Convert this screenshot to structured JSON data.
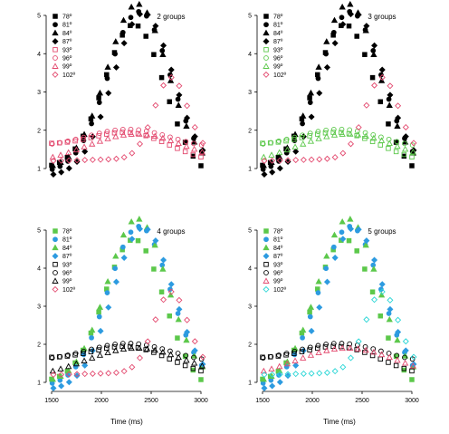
{
  "figure": {
    "xlabel": "Time (ms)"
  },
  "colors": {
    "black": "#000000",
    "red": "#e34a6f",
    "green": "#5cc84b",
    "blue": "#2d9be0",
    "cyan": "#29d6d6"
  },
  "chart_data": [
    {
      "type": "scatter",
      "title": "2 groups",
      "xlim": [
        1500,
        3000
      ],
      "ylim": [
        1,
        5
      ],
      "xticks": [
        1500,
        2000,
        2500,
        3000
      ],
      "yticks": [
        1,
        2,
        3,
        4,
        5
      ],
      "legend_position": "top-left",
      "series": [
        {
          "name": "78º",
          "shape": "square-filled",
          "color": "#000000"
        },
        {
          "name": "81º",
          "shape": "circle-filled",
          "color": "#000000"
        },
        {
          "name": "84º",
          "shape": "triangle-filled",
          "color": "#000000"
        },
        {
          "name": "87º",
          "shape": "diamond-filled",
          "color": "#000000"
        },
        {
          "name": "93º",
          "shape": "square-open",
          "color": "#e34a6f"
        },
        {
          "name": "96º",
          "shape": "circle-open",
          "color": "#e34a6f"
        },
        {
          "name": "99º",
          "shape": "triangle-open",
          "color": "#e34a6f"
        },
        {
          "name": "102º",
          "shape": "diamond-open",
          "color": "#e34a6f"
        }
      ]
    },
    {
      "type": "scatter",
      "title": "3 groups",
      "xlim": [
        1500,
        3000
      ],
      "ylim": [
        1,
        5
      ],
      "xticks": [
        1500,
        2000,
        2500,
        3000
      ],
      "yticks": [
        1,
        2,
        3,
        4,
        5
      ],
      "legend_position": "top-left",
      "series": [
        {
          "name": "78º",
          "shape": "square-filled",
          "color": "#000000"
        },
        {
          "name": "81º",
          "shape": "circle-filled",
          "color": "#000000"
        },
        {
          "name": "84º",
          "shape": "triangle-filled",
          "color": "#000000"
        },
        {
          "name": "87º",
          "shape": "diamond-filled",
          "color": "#000000"
        },
        {
          "name": "93º",
          "shape": "square-open",
          "color": "#5cc84b"
        },
        {
          "name": "96º",
          "shape": "circle-open",
          "color": "#5cc84b"
        },
        {
          "name": "99º",
          "shape": "triangle-open",
          "color": "#5cc84b"
        },
        {
          "name": "102º",
          "shape": "diamond-open",
          "color": "#e34a6f"
        }
      ]
    },
    {
      "type": "scatter",
      "title": "4 groups",
      "xlim": [
        1500,
        3000
      ],
      "ylim": [
        1,
        5
      ],
      "xticks": [
        1500,
        2000,
        2500,
        3000
      ],
      "yticks": [
        1,
        2,
        3,
        4,
        5
      ],
      "legend_position": "top-left",
      "series": [
        {
          "name": "78º",
          "shape": "square-filled",
          "color": "#5cc84b"
        },
        {
          "name": "81º",
          "shape": "circle-filled",
          "color": "#2d9be0"
        },
        {
          "name": "84º",
          "shape": "triangle-filled",
          "color": "#5cc84b"
        },
        {
          "name": "87º",
          "shape": "diamond-filled",
          "color": "#2d9be0"
        },
        {
          "name": "93º",
          "shape": "square-open",
          "color": "#000000"
        },
        {
          "name": "96º",
          "shape": "circle-open",
          "color": "#000000"
        },
        {
          "name": "99º",
          "shape": "triangle-open",
          "color": "#000000"
        },
        {
          "name": "102º",
          "shape": "diamond-open",
          "color": "#e34a6f"
        }
      ]
    },
    {
      "type": "scatter",
      "title": "5 groups",
      "xlim": [
        1500,
        3000
      ],
      "ylim": [
        1,
        5
      ],
      "xticks": [
        1500,
        2000,
        2500,
        3000
      ],
      "yticks": [
        1,
        2,
        3,
        4,
        5
      ],
      "legend_position": "top-left",
      "series": [
        {
          "name": "78º",
          "shape": "square-filled",
          "color": "#5cc84b"
        },
        {
          "name": "81º",
          "shape": "circle-filled",
          "color": "#2d9be0"
        },
        {
          "name": "84º",
          "shape": "triangle-filled",
          "color": "#5cc84b"
        },
        {
          "name": "87º",
          "shape": "diamond-filled",
          "color": "#2d9be0"
        },
        {
          "name": "93º",
          "shape": "square-open",
          "color": "#000000"
        },
        {
          "name": "96º",
          "shape": "circle-open",
          "color": "#000000"
        },
        {
          "name": "99º",
          "shape": "triangle-open",
          "color": "#e34a6f"
        },
        {
          "name": "102º",
          "shape": "diamond-open",
          "color": "#29d6d6"
        }
      ]
    }
  ],
  "curves": {
    "x_start": 1500,
    "x_end": 3000,
    "points_per_series": 20,
    "series": [
      {
        "name": "78º",
        "base": 1.0,
        "amp": 3.9,
        "mu": 2330,
        "sigma": 300,
        "tail": -0.25
      },
      {
        "name": "81º",
        "base": 0.9,
        "amp": 4.2,
        "mu": 2380,
        "sigma": 310,
        "tail": 0.0
      },
      {
        "name": "84º",
        "base": 1.0,
        "amp": 4.3,
        "mu": 2360,
        "sigma": 300,
        "tail": 0.0
      },
      {
        "name": "87º",
        "base": 0.8,
        "amp": 4.2,
        "mu": 2420,
        "sigma": 300,
        "tail": 0.1
      },
      {
        "name": "93º",
        "base": 1.6,
        "amp": 0.55,
        "mu": 2300,
        "sigma": 380,
        "tail": -0.4
      },
      {
        "name": "96º",
        "base": 1.55,
        "amp": 0.5,
        "mu": 2280,
        "sigma": 420,
        "tail": -0.05
      },
      {
        "name": "99º",
        "base": 1.1,
        "amp": 0.8,
        "mu": 2350,
        "sigma": 500,
        "tail": 0.0
      },
      {
        "name": "102º",
        "base": 1.2,
        "amp": 2.1,
        "mu": 2700,
        "sigma": 170,
        "tail": 0.1
      }
    ]
  }
}
